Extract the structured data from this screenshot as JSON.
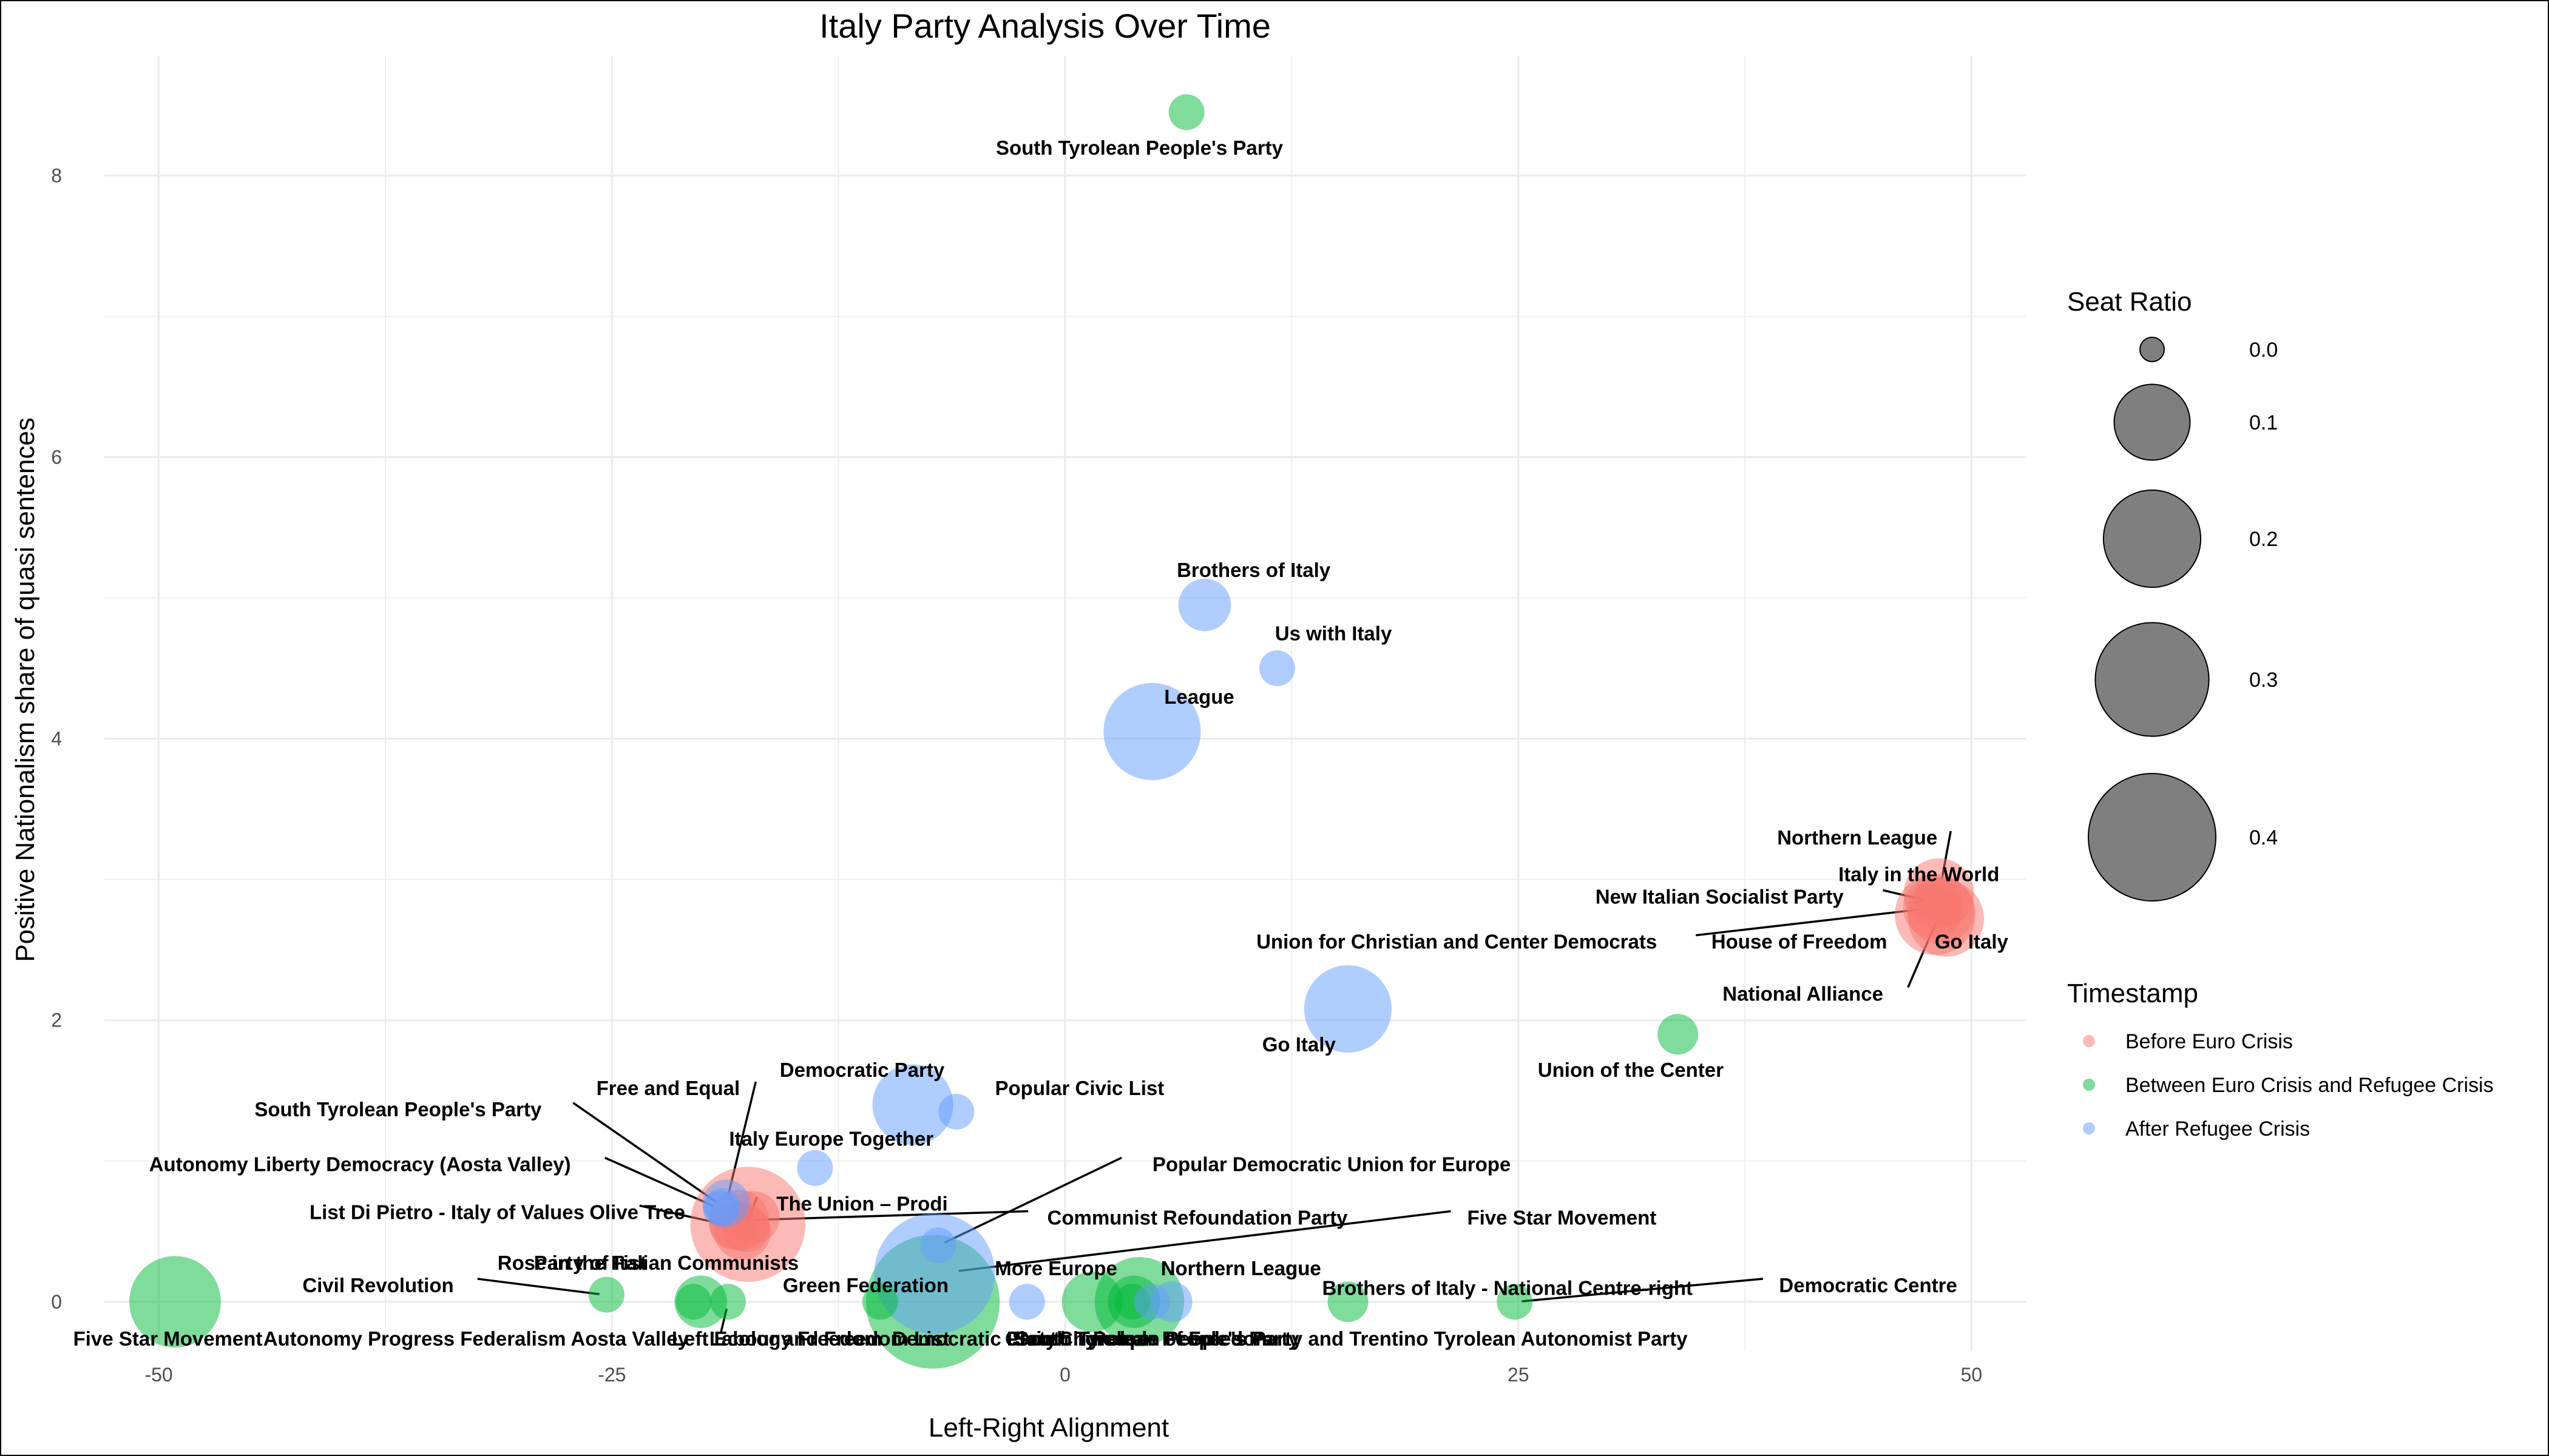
{
  "colors": {
    "Before Euro Crisis": "#F8766D",
    "Between Euro Crisis and Refugee Crisis": "#00BA38",
    "After Refugee Crisis": "#619CFF"
  },
  "chart_data": {
    "type": "scatter",
    "title": "Italy Party Analysis Over Time",
    "xlabel": "Left-Right Alignment",
    "ylabel": "Positive Nationalism share of quasi sentences",
    "xlim": [
      -53,
      53
    ],
    "ylim": [
      -0.35,
      8.85
    ],
    "xticks": [
      -50,
      -25,
      0,
      25,
      50
    ],
    "yticks": [
      0,
      2,
      4,
      6,
      8
    ],
    "grid": true,
    "size_legend": {
      "title": "Seat Ratio",
      "values": [
        0.0,
        0.1,
        0.2,
        0.3,
        0.4
      ],
      "labels": [
        "0.0",
        "0.1",
        "0.2",
        "0.3",
        "0.4"
      ]
    },
    "color_legend": {
      "title": "Timestamp",
      "entries": [
        "Before Euro Crisis",
        "Between Euro Crisis and Refugee Crisis",
        "After Refugee Crisis"
      ]
    },
    "points": [
      {
        "label": "Northern League",
        "x": 48.2,
        "y": 2.9,
        "size": 0.08,
        "group": "Before Euro Crisis",
        "label_x": 43.7,
        "label_y": 3.3,
        "leader": true
      },
      {
        "label": "Italy in the World",
        "x": 48.5,
        "y": 2.8,
        "size": 0.005,
        "group": "Before Euro Crisis",
        "label_x": 47.1,
        "label_y": 3.04,
        "leader": false
      },
      {
        "label": "New Italian Socialist Party",
        "x": 47.8,
        "y": 2.85,
        "size": 0.005,
        "group": "Before Euro Crisis",
        "label_x": 36.1,
        "label_y": 2.88,
        "leader": true
      },
      {
        "label": "House of Freedom",
        "x": 48.0,
        "y": 2.75,
        "size": 0.12,
        "group": "Before Euro Crisis",
        "label_x": 40.5,
        "label_y": 2.56,
        "leader": false
      },
      {
        "label": "Union for Christian and Center Democrats",
        "x": 47.9,
        "y": 2.8,
        "size": 0.05,
        "group": "Before Euro Crisis",
        "label_x": 21.6,
        "label_y": 2.56,
        "leader": true
      },
      {
        "label": "Go Italy",
        "x": 48.6,
        "y": 2.72,
        "size": 0.1,
        "group": "Before Euro Crisis",
        "label_x": 50.0,
        "label_y": 2.56,
        "leader": false
      },
      {
        "label": "National Alliance",
        "x": 48.3,
        "y": 2.78,
        "size": 0.07,
        "group": "Before Euro Crisis",
        "label_x": 40.7,
        "label_y": 2.19,
        "leader": true
      },
      {
        "label": "Olive Tree",
        "x": -17.5,
        "y": 0.55,
        "size": 0.31,
        "group": "Before Euro Crisis",
        "label_x": -23.6,
        "label_y": 0.64,
        "leader": false
      },
      {
        "label": "The Union – Prodi",
        "x": -17.8,
        "y": 0.5,
        "size": 0.04,
        "group": "Before Euro Crisis",
        "label_x": -11.2,
        "label_y": 0.7,
        "leader": true
      },
      {
        "label": "Party of Italian Communists",
        "x": -17.2,
        "y": 0.6,
        "size": 0.03,
        "group": "Before Euro Crisis",
        "label_x": -22.0,
        "label_y": 0.28,
        "leader": false
      },
      {
        "label": "Communist Refoundation Party",
        "x": -18.0,
        "y": 0.58,
        "size": 0.05,
        "group": "Before Euro Crisis",
        "label_x": 7.3,
        "label_y": 0.6,
        "leader": true
      },
      {
        "label": "Rose in the Fist",
        "x": -17.6,
        "y": 0.52,
        "size": 0.02,
        "group": "Before Euro Crisis",
        "label_x": -27.2,
        "label_y": 0.28,
        "leader": false
      },
      {
        "label": "List Di Pietro - Italy of Values",
        "x": -18.3,
        "y": 0.54,
        "size": 0.02,
        "group": "Before Euro Crisis",
        "label_x": -34.1,
        "label_y": 0.64,
        "leader": true
      },
      {
        "label": "South Tyrolean People's Party",
        "x": 6.7,
        "y": 8.45,
        "size": 0.005,
        "group": "Between Euro Crisis and Refugee Crisis",
        "label_x": 4.1,
        "label_y": 8.2,
        "leader": false
      },
      {
        "label": "Union of the Center",
        "x": 33.8,
        "y": 1.9,
        "size": 0.01,
        "group": "Between Euro Crisis and Refugee Crisis",
        "label_x": 31.2,
        "label_y": 1.65,
        "leader": false
      },
      {
        "label": "Five Star Movement",
        "x": -49.1,
        "y": 0.0,
        "size": 0.17,
        "group": "Between Euro Crisis and Refugee Crisis",
        "label_x": -49.5,
        "label_y": -0.26,
        "leader": false
      },
      {
        "label": "Democratic Party",
        "x": -7.3,
        "y": 0.0,
        "size": 0.45,
        "group": "Between Euro Crisis and Refugee Crisis",
        "label_x": -5.0,
        "label_y": -0.26,
        "leader": false
      },
      {
        "label": "Civil Revolution",
        "x": -25.3,
        "y": 0.05,
        "size": 0.005,
        "group": "Between Euro Crisis and Refugee Crisis",
        "label_x": -37.9,
        "label_y": 0.12,
        "leader": true
      },
      {
        "label": "Left Ecology Freedom",
        "x": -20.1,
        "y": 0.0,
        "size": 0.03,
        "group": "Between Euro Crisis and Refugee Crisis",
        "label_x": -15.9,
        "label_y": -0.26,
        "leader": false
      },
      {
        "label": "Autonomy Progress Federalism Aosta Valley",
        "x": -18.6,
        "y": 0.0,
        "size": 0.005,
        "group": "Between Euro Crisis and Refugee Crisis",
        "label_x": -32.5,
        "label_y": -0.26,
        "leader": true
      },
      {
        "label": "Labour and Freedom List",
        "x": -20.5,
        "y": 0.0,
        "size": 0.005,
        "group": "Between Euro Crisis and Refugee Crisis",
        "label_x": -13.0,
        "label_y": -0.26,
        "leader": false
      },
      {
        "label": "Green Federation",
        "x": -10.2,
        "y": 0.0,
        "size": 0.005,
        "group": "Between Euro Crisis and Refugee Crisis",
        "label_x": -11.0,
        "label_y": 0.12,
        "leader": false
      },
      {
        "label": "Civic Choice",
        "x": 1.5,
        "y": 0.0,
        "size": 0.05,
        "group": "Between Euro Crisis and Refugee Crisis",
        "label_x": 0.0,
        "label_y": -0.26,
        "leader": false
      },
      {
        "label": "South Tyrolean People's Party and Trentino Tyrolean Autonomist Party",
        "x": 3.7,
        "y": 0.0,
        "size": 0.005,
        "group": "Between Euro Crisis and Refugee Crisis",
        "label_x": 15.8,
        "label_y": -0.26,
        "leader": false
      },
      {
        "label": "Brothers of Italy - National Centre-right",
        "x": 15.6,
        "y": 0.0,
        "size": 0.01,
        "group": "Between Euro Crisis and Refugee Crisis",
        "label_x": 24.4,
        "label_y": 0.1,
        "leader": false
      },
      {
        "label": "Democratic Centre",
        "x": 24.8,
        "y": 0.0,
        "size": 0.005,
        "group": "Between Euro Crisis and Refugee Crisis",
        "label_x": 44.3,
        "label_y": 0.12,
        "leader": true
      },
      {
        "label": "People of Freedom",
        "x": 4.1,
        "y": 0.0,
        "size": 0.16,
        "group": "Between Euro Crisis and Refugee Crisis",
        "label_x": 6.5,
        "label_y": -0.26,
        "leader": false
      },
      {
        "label": "Northern League",
        "x": 3.8,
        "y": 0.0,
        "size": 0.03,
        "group": "Between Euro Crisis and Refugee Crisis",
        "label_x": 9.7,
        "label_y": 0.24,
        "leader": false
      },
      {
        "label": "Brothers of Italy",
        "x": 7.7,
        "y": 4.95,
        "size": 0.03,
        "group": "After Refugee Crisis",
        "label_x": 10.4,
        "label_y": 5.2,
        "leader": false
      },
      {
        "label": "Us with Italy",
        "x": 11.7,
        "y": 4.5,
        "size": 0.005,
        "group": "After Refugee Crisis",
        "label_x": 14.8,
        "label_y": 4.75,
        "leader": false
      },
      {
        "label": "League",
        "x": 4.8,
        "y": 4.05,
        "size": 0.2,
        "group": "After Refugee Crisis",
        "label_x": 7.4,
        "label_y": 4.3,
        "leader": false
      },
      {
        "label": "Go Italy",
        "x": 15.6,
        "y": 2.08,
        "size": 0.15,
        "group": "After Refugee Crisis",
        "label_x": 12.9,
        "label_y": 1.83,
        "leader": false
      },
      {
        "label": "Democratic Party",
        "x": -8.4,
        "y": 1.4,
        "size": 0.12,
        "group": "After Refugee Crisis",
        "label_x": -11.2,
        "label_y": 1.65,
        "leader": false
      },
      {
        "label": "Popular Civic List",
        "x": -6.0,
        "y": 1.35,
        "size": 0.005,
        "group": "After Refugee Crisis",
        "label_x": 0.8,
        "label_y": 1.52,
        "leader": false
      },
      {
        "label": "Italy Europe Together",
        "x": -13.8,
        "y": 0.95,
        "size": 0.005,
        "group": "After Refugee Crisis",
        "label_x": -12.9,
        "label_y": 1.16,
        "leader": false
      },
      {
        "label": "Free and Equal",
        "x": -18.7,
        "y": 0.7,
        "size": 0.02,
        "group": "After Refugee Crisis",
        "label_x": -21.9,
        "label_y": 1.52,
        "leader": true
      },
      {
        "label": "South Tyrolean People's Party",
        "x": -18.9,
        "y": 0.68,
        "size": 0.005,
        "group": "After Refugee Crisis",
        "label_x": -36.8,
        "label_y": 1.37,
        "leader": true
      },
      {
        "label": "Autonomy Liberty Democracy (Aosta Valley)",
        "x": -19.0,
        "y": 0.66,
        "size": 0.005,
        "group": "After Refugee Crisis",
        "label_x": -38.9,
        "label_y": 0.98,
        "leader": true
      },
      {
        "label": "Popular Democratic Union for Europe",
        "x": -7.0,
        "y": 0.4,
        "size": 0.005,
        "group": "After Refugee Crisis",
        "label_x": 14.7,
        "label_y": 0.98,
        "leader": true
      },
      {
        "label": "Five Star Movement",
        "x": -7.2,
        "y": 0.2,
        "size": 0.35,
        "group": "After Refugee Crisis",
        "label_x": 27.4,
        "label_y": 0.6,
        "leader": true
      },
      {
        "label": "More Europe",
        "x": -2.1,
        "y": 0.0,
        "size": 0.005,
        "group": "After Refugee Crisis",
        "label_x": -0.5,
        "label_y": 0.24,
        "leader": false
      },
      {
        "label": "Northern League",
        "x": 5.9,
        "y": 0.0,
        "size": 0.01,
        "group": "After Refugee Crisis",
        "label_x": 9.7,
        "label_y": 0.24,
        "leader": false
      },
      {
        "label": "South Tyrolean People's Party",
        "x": 4.8,
        "y": 0.0,
        "size": 0.005,
        "group": "After Refugee Crisis",
        "label_x": 5.0,
        "label_y": -0.26,
        "leader": false
      }
    ]
  }
}
